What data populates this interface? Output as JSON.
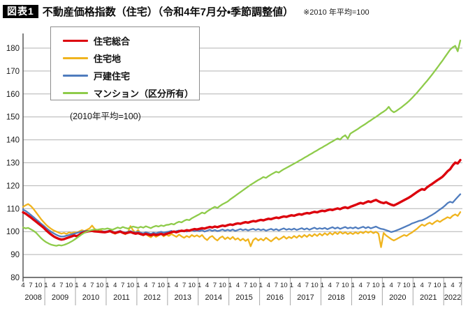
{
  "header": {
    "badge": "図表1",
    "title": "不動産価格指数（住宅）（令和4年7月分・季節調整値）",
    "note": "※2010 年平均=100"
  },
  "annotation": "(2010年平均=100)",
  "chart_data": {
    "type": "line",
    "title": "不動産価格指数（住宅）",
    "x_start": "2008-04",
    "x_end": "2022-07",
    "x_frequency": "monthly",
    "xlabel": "",
    "ylabel": "",
    "ylim": [
      80,
      186
    ],
    "y_ticks": [
      80,
      90,
      100,
      110,
      120,
      130,
      140,
      150,
      160,
      170,
      180
    ],
    "x_month_tick_labels": [
      1,
      4,
      7,
      10
    ],
    "x_years": [
      2008,
      2009,
      2010,
      2011,
      2012,
      2013,
      2014,
      2015,
      2016,
      2017,
      2018,
      2019,
      2020,
      2021,
      2022
    ],
    "grid": true,
    "legend_position": "upper-left",
    "colors": {
      "grid": "#b2b2b2",
      "axis": "#4d4d4d",
      "year_separator": "#a6a6a6",
      "text": "#1a1a1a"
    },
    "series": [
      {
        "name": "住宅総合",
        "color": "#dc000c",
        "width": 3.4,
        "values": [
          108.4,
          107.8,
          107.0,
          106.2,
          105.3,
          104.4,
          103.5,
          102.6,
          101.7,
          100.6,
          99.6,
          98.7,
          97.9,
          97.3,
          96.8,
          96.5,
          96.7,
          97.1,
          97.5,
          97.9,
          98.3,
          98.0,
          98.6,
          99.3,
          99.7,
          100.0,
          100.2,
          100.3,
          100.1,
          100.0,
          99.9,
          99.8,
          99.7,
          99.9,
          100.2,
          99.7,
          99.4,
          99.7,
          100.0,
          99.5,
          99.2,
          99.5,
          99.8,
          99.4,
          99.1,
          99.3,
          98.9,
          98.6,
          99.0,
          98.7,
          98.4,
          98.8,
          98.5,
          98.7,
          99.0,
          98.6,
          99.0,
          99.3,
          99.7,
          100.0,
          99.7,
          100.1,
          100.4,
          100.2,
          100.6,
          100.4,
          100.8,
          101.1,
          100.9,
          101.2,
          101.5,
          101.3,
          101.7,
          102.0,
          101.8,
          102.2,
          101.9,
          102.3,
          102.6,
          102.4,
          102.8,
          103.1,
          102.9,
          103.3,
          103.6,
          103.4,
          103.8,
          104.1,
          103.9,
          104.3,
          104.6,
          104.4,
          104.8,
          105.1,
          104.9,
          105.3,
          105.6,
          105.4,
          105.8,
          106.1,
          105.9,
          106.3,
          106.6,
          106.4,
          106.8,
          107.1,
          106.9,
          107.3,
          107.6,
          107.4,
          107.8,
          108.1,
          107.9,
          108.3,
          108.6,
          108.4,
          108.8,
          109.1,
          108.9,
          109.3,
          109.6,
          109.4,
          109.8,
          110.1,
          109.8,
          110.3,
          110.6,
          110.2,
          110.8,
          111.2,
          111.6,
          112.1,
          112.5,
          112.2,
          112.7,
          113.2,
          112.9,
          113.4,
          113.8,
          113.2,
          112.7,
          112.4,
          112.8,
          112.2,
          111.7,
          111.4,
          111.9,
          112.5,
          113.1,
          113.7,
          114.3,
          114.9,
          115.6,
          116.4,
          117.2,
          117.9,
          118.5,
          118.2,
          119.3,
          120.1,
          120.8,
          121.6,
          122.4,
          123.1,
          123.9,
          125.0,
          126.3,
          127.2,
          128.8,
          130.1,
          129.7,
          131.2
        ]
      },
      {
        "name": "住宅地",
        "color": "#f0b41e",
        "width": 2.3,
        "values": [
          110.8,
          111.5,
          112.0,
          111.2,
          110.0,
          108.5,
          107.0,
          105.5,
          104.2,
          103.0,
          102.0,
          101.2,
          100.5,
          100.0,
          99.5,
          99.1,
          99.4,
          99.0,
          99.6,
          99.3,
          99.7,
          99.5,
          100.1,
          100.6,
          100.2,
          100.8,
          101.4,
          102.6,
          101.2,
          100.5,
          100.9,
          100.2,
          99.7,
          99.9,
          100.4,
          99.5,
          99.0,
          99.6,
          100.2,
          99.3,
          98.8,
          99.7,
          102.4,
          100.6,
          99.5,
          100.7,
          99.1,
          98.3,
          98.9,
          98.1,
          97.5,
          98.5,
          97.7,
          98.3,
          99.1,
          97.9,
          98.7,
          98.1,
          98.9,
          98.3,
          97.7,
          98.7,
          97.9,
          97.3,
          98.1,
          97.5,
          98.5,
          97.8,
          98.4,
          97.7,
          98.5,
          97.1,
          96.3,
          97.5,
          98.1,
          96.9,
          96.1,
          97.3,
          97.9,
          96.7,
          97.5,
          96.7,
          97.7,
          96.5,
          97.1,
          96.1,
          96.9,
          95.9,
          96.7,
          93.6,
          96.3,
          97.1,
          96.1,
          96.9,
          96.1,
          97.3,
          96.5,
          95.7,
          96.7,
          97.5,
          96.5,
          97.1,
          97.9,
          96.9,
          97.7,
          97.1,
          98.1,
          97.3,
          98.3,
          97.5,
          98.5,
          97.7,
          98.7,
          97.9,
          98.9,
          98.1,
          99.1,
          98.3,
          99.3,
          98.5,
          99.5,
          98.7,
          99.7,
          98.9,
          99.9,
          99.1,
          99.7,
          98.9,
          99.5,
          98.9,
          99.7,
          99.1,
          99.9,
          99.3,
          100.1,
          99.5,
          100.1,
          99.3,
          99.9,
          99.1,
          93.2,
          99.4,
          98.3,
          97.5,
          96.7,
          96.1,
          96.7,
          97.3,
          97.9,
          98.5,
          98.1,
          98.9,
          99.5,
          100.4,
          101.2,
          102.2,
          103.1,
          102.5,
          103.3,
          103.9,
          103.2,
          104.1,
          104.8,
          104.2,
          105.0,
          105.6,
          106.3,
          105.8,
          106.9,
          107.5,
          106.8,
          108.5
        ]
      },
      {
        "name": "戸建住宅",
        "color": "#4f7cbe",
        "width": 2.3,
        "values": [
          109.6,
          109.0,
          108.2,
          107.3,
          106.4,
          105.4,
          104.5,
          103.5,
          102.6,
          101.6,
          100.7,
          99.9,
          99.2,
          98.6,
          98.1,
          97.8,
          97.9,
          98.2,
          98.5,
          98.8,
          99.1,
          99.4,
          99.7,
          100.0,
          100.2,
          100.3,
          100.2,
          100.1,
          100.0,
          99.9,
          100.0,
          100.1,
          100.0,
          100.2,
          100.5,
          100.0,
          99.7,
          100.0,
          100.3,
          99.8,
          99.5,
          99.9,
          100.2,
          99.8,
          99.6,
          99.9,
          99.5,
          99.2,
          99.7,
          99.4,
          99.0,
          99.5,
          99.2,
          99.6,
          99.9,
          99.5,
          99.8,
          100.0,
          100.3,
          99.8,
          100.2,
          100.5,
          100.1,
          100.4,
          100.0,
          100.3,
          100.6,
          100.2,
          100.5,
          100.2,
          100.6,
          100.0,
          100.4,
          100.8,
          100.3,
          100.7,
          100.2,
          100.5,
          100.9,
          100.4,
          100.8,
          100.4,
          100.9,
          100.3,
          100.7,
          101.1,
          100.6,
          101.0,
          100.5,
          100.9,
          101.2,
          100.7,
          101.1,
          100.6,
          101.0,
          100.4,
          100.8,
          101.2,
          100.6,
          101.1,
          100.5,
          101.0,
          101.4,
          100.8,
          101.2,
          100.8,
          101.3,
          100.7,
          101.1,
          101.5,
          100.9,
          101.4,
          100.8,
          101.3,
          101.7,
          101.1,
          101.5,
          101.2,
          101.6,
          101.0,
          101.5,
          101.9,
          101.3,
          101.8,
          101.2,
          101.6,
          102.0,
          101.4,
          101.8,
          101.4,
          101.9,
          101.3,
          101.7,
          102.1,
          101.5,
          102.0,
          101.4,
          101.8,
          102.2,
          101.6,
          101.2,
          101.0,
          100.6,
          100.2,
          99.8,
          100.1,
          100.5,
          100.9,
          101.4,
          101.9,
          102.4,
          102.9,
          103.5,
          103.9,
          104.3,
          104.7,
          104.9,
          105.4,
          106.0,
          106.7,
          107.3,
          108.0,
          108.8,
          109.6,
          110.4,
          111.3,
          112.4,
          113.0,
          112.6,
          113.9,
          115.1,
          116.3
        ]
      },
      {
        "name": "マンション（区分所有）",
        "color": "#8ecb4a",
        "width": 2.3,
        "values": [
          101.8,
          101.4,
          101.6,
          101.0,
          100.4,
          99.6,
          98.4,
          97.2,
          96.2,
          95.4,
          94.8,
          94.3,
          94.0,
          93.8,
          94.1,
          93.9,
          94.2,
          94.6,
          95.1,
          95.7,
          96.4,
          97.2,
          98.0,
          98.8,
          99.5,
          100.0,
          100.4,
          100.7,
          100.9,
          100.8,
          101.0,
          101.2,
          101.1,
          101.4,
          101.1,
          100.8,
          101.3,
          101.8,
          101.4,
          102.0,
          101.6,
          101.3,
          101.8,
          102.2,
          101.9,
          101.6,
          102.1,
          101.7,
          102.3,
          101.9,
          101.5,
          102.1,
          102.5,
          102.2,
          102.7,
          102.4,
          102.9,
          103.0,
          103.4,
          103.1,
          103.8,
          104.3,
          104.0,
          104.7,
          105.2,
          105.0,
          105.8,
          106.4,
          107.0,
          107.6,
          108.3,
          107.9,
          108.8,
          109.5,
          110.2,
          110.8,
          110.3,
          111.2,
          111.9,
          112.5,
          113.1,
          114.0,
          114.8,
          115.6,
          116.4,
          117.2,
          118.0,
          118.8,
          119.6,
          120.4,
          121.1,
          121.8,
          122.5,
          123.1,
          123.8,
          123.4,
          124.2,
          124.9,
          125.5,
          126.1,
          125.7,
          126.5,
          127.2,
          127.8,
          128.4,
          129.0,
          129.6,
          130.2,
          130.9,
          131.5,
          132.2,
          132.8,
          133.5,
          134.1,
          134.8,
          135.4,
          136.1,
          136.7,
          137.4,
          138.0,
          138.7,
          139.3,
          140.0,
          140.6,
          140.1,
          141.3,
          142.0,
          140.5,
          142.7,
          143.4,
          144.1,
          144.8,
          145.6,
          146.3,
          147.0,
          147.8,
          148.5,
          149.3,
          150.0,
          150.8,
          151.6,
          152.3,
          153.1,
          154.4,
          152.8,
          152.0,
          152.6,
          153.4,
          154.2,
          155.1,
          156.0,
          157.0,
          158.1,
          159.3,
          160.5,
          161.8,
          163.1,
          164.4,
          165.7,
          167.1,
          168.5,
          170.0,
          171.5,
          173.0,
          174.5,
          176.1,
          177.7,
          179.3,
          180.3,
          181.0,
          178.6,
          183.3
        ]
      }
    ]
  }
}
